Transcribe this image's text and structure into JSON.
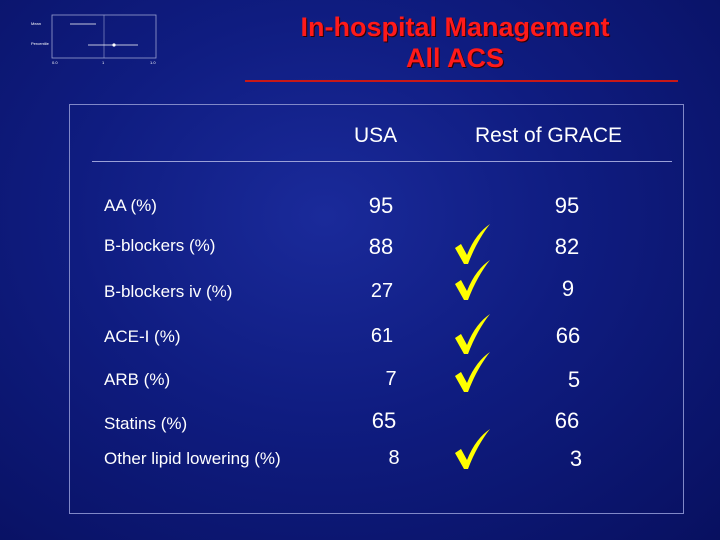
{
  "slide": {
    "title_line1": "In-hospital Management",
    "title_line2": "All ACS",
    "thumbnail": {
      "label_top": "Mean",
      "label_bottom": "Percentile",
      "ticks": [
        "0.0",
        "1",
        "1.0"
      ]
    },
    "columns": {
      "usa": "USA",
      "rest": "Rest of GRACE"
    },
    "rows": [
      {
        "label": "AA (%)",
        "usa": "95",
        "rest": "95",
        "check": false
      },
      {
        "label": "B-blockers (%)",
        "usa": "88",
        "rest": "82",
        "check": true
      },
      {
        "label": "B-blockers iv (%)",
        "usa": "27",
        "rest": "9",
        "check": true
      },
      {
        "label": "ACE-I (%)",
        "usa": "61",
        "rest": "66",
        "check": true
      },
      {
        "label": "ARB (%)",
        "usa": "7",
        "rest": "5",
        "check": true
      },
      {
        "label": "Statins (%)",
        "usa": "65",
        "rest": "66",
        "check": false
      },
      {
        "label": "Other lipid lowering (%)",
        "usa": "8",
        "rest": "3",
        "check": true
      }
    ],
    "colors": {
      "title": "#ff1a1a",
      "background": "#0f1c80",
      "text": "#ffffff"
    },
    "icons": [
      "checkmark-icon"
    ]
  }
}
